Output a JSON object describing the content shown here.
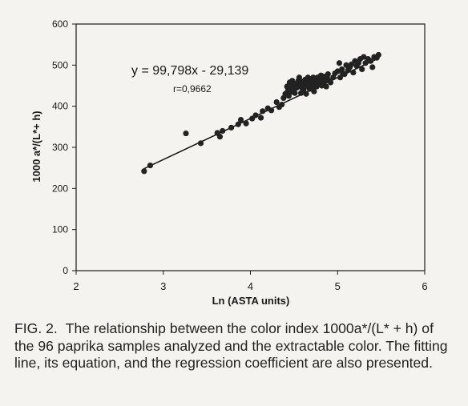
{
  "chart_data": {
    "type": "scatter",
    "xlabel": "Ln (ASTA units)",
    "ylabel": "1000 a*/(L*+ h)",
    "xlim": [
      2,
      6
    ],
    "ylim": [
      0,
      600
    ],
    "xticks": [
      "2",
      "3",
      "4",
      "5",
      "6"
    ],
    "yticks": [
      "0",
      "100",
      "200",
      "300",
      "400",
      "500",
      "600"
    ],
    "grid": false,
    "legend": "none",
    "annotations": {
      "equation": "y = 99,798x - 29,139",
      "r": "r=0,9662"
    },
    "fit_line": {
      "slope": 99.798,
      "intercept": -29.139,
      "x_range": [
        2.78,
        5.47
      ]
    },
    "marker_color": "#222222",
    "points": [
      [
        2.78,
        242
      ],
      [
        2.85,
        256
      ],
      [
        3.26,
        334
      ],
      [
        3.43,
        310
      ],
      [
        3.62,
        335
      ],
      [
        3.65,
        326
      ],
      [
        3.68,
        340
      ],
      [
        3.78,
        348
      ],
      [
        3.86,
        356
      ],
      [
        3.89,
        367
      ],
      [
        3.95,
        358
      ],
      [
        4.02,
        370
      ],
      [
        4.06,
        378
      ],
      [
        4.12,
        372
      ],
      [
        4.14,
        388
      ],
      [
        4.2,
        395
      ],
      [
        4.24,
        390
      ],
      [
        4.3,
        410
      ],
      [
        4.33,
        398
      ],
      [
        4.36,
        404
      ],
      [
        4.38,
        420
      ],
      [
        4.4,
        430
      ],
      [
        4.42,
        448
      ],
      [
        4.43,
        438
      ],
      [
        4.44,
        425
      ],
      [
        4.45,
        458
      ],
      [
        4.46,
        446
      ],
      [
        4.47,
        435
      ],
      [
        4.48,
        462
      ],
      [
        4.49,
        452
      ],
      [
        4.5,
        440
      ],
      [
        4.51,
        432
      ],
      [
        4.52,
        455
      ],
      [
        4.53,
        445
      ],
      [
        4.55,
        462
      ],
      [
        4.56,
        470
      ],
      [
        4.57,
        450
      ],
      [
        4.58,
        432
      ],
      [
        4.59,
        445
      ],
      [
        4.6,
        460
      ],
      [
        4.61,
        440
      ],
      [
        4.62,
        455
      ],
      [
        4.63,
        465
      ],
      [
        4.64,
        430
      ],
      [
        4.65,
        448
      ],
      [
        4.66,
        470
      ],
      [
        4.67,
        458
      ],
      [
        4.68,
        442
      ],
      [
        4.7,
        462
      ],
      [
        4.71,
        450
      ],
      [
        4.72,
        470
      ],
      [
        4.73,
        436
      ],
      [
        4.74,
        458
      ],
      [
        4.75,
        462
      ],
      [
        4.76,
        448
      ],
      [
        4.77,
        470
      ],
      [
        4.78,
        455
      ],
      [
        4.79,
        468
      ],
      [
        4.8,
        462
      ],
      [
        4.81,
        475
      ],
      [
        4.82,
        450
      ],
      [
        4.83,
        466
      ],
      [
        4.84,
        458
      ],
      [
        4.85,
        472
      ],
      [
        4.86,
        462
      ],
      [
        4.87,
        448
      ],
      [
        4.88,
        470
      ],
      [
        4.89,
        478
      ],
      [
        4.9,
        462
      ],
      [
        4.92,
        458
      ],
      [
        4.95,
        470
      ],
      [
        4.97,
        480
      ],
      [
        5.0,
        485
      ],
      [
        5.02,
        505
      ],
      [
        5.03,
        470
      ],
      [
        5.05,
        490
      ],
      [
        5.06,
        480
      ],
      [
        5.08,
        478
      ],
      [
        5.1,
        500
      ],
      [
        5.12,
        488
      ],
      [
        5.14,
        495
      ],
      [
        5.16,
        502
      ],
      [
        5.18,
        482
      ],
      [
        5.2,
        510
      ],
      [
        5.22,
        498
      ],
      [
        5.24,
        505
      ],
      [
        5.26,
        515
      ],
      [
        5.28,
        490
      ],
      [
        5.3,
        520
      ],
      [
        5.32,
        505
      ],
      [
        5.35,
        515
      ],
      [
        5.38,
        510
      ],
      [
        5.4,
        495
      ],
      [
        5.42,
        520
      ],
      [
        5.45,
        518
      ],
      [
        5.47,
        525
      ]
    ]
  },
  "caption": {
    "label": "FIG. 2.",
    "text": "The relationship between the color index 1000a*/(L* + h) of the 96 paprika samples analyzed and the extractable color. The fitting line, its equation, and the regression coefficient are also presented."
  }
}
